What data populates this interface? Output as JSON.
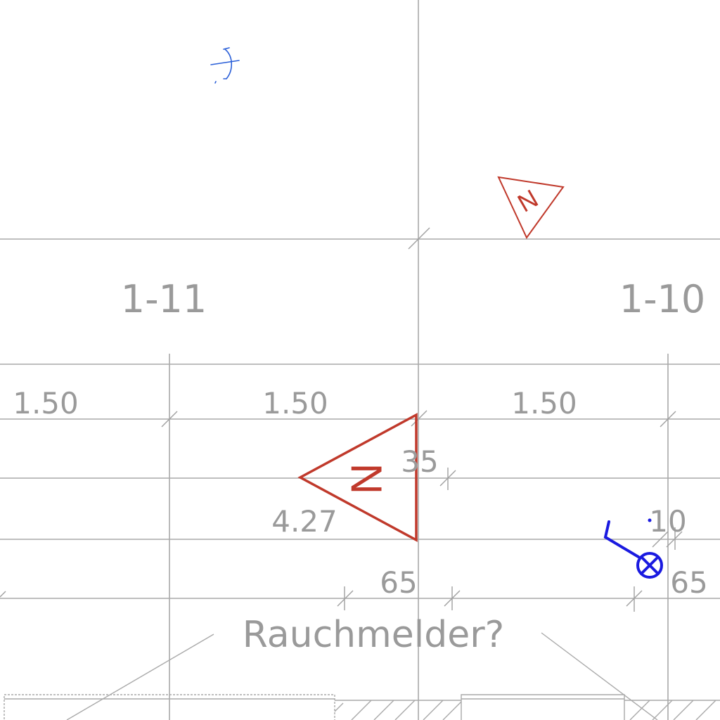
{
  "rooms": [
    {
      "id": "room-1-11",
      "label": "1-11"
    },
    {
      "id": "room-1-10",
      "label": "1-10"
    }
  ],
  "dimensions": {
    "row_1": [
      "1.50",
      "1.50",
      "1.50"
    ],
    "d_35": "35",
    "d_427": "4.27",
    "d_10": "10",
    "d_65_a": "65",
    "d_65_b": "65"
  },
  "annotation": "Rauchmelder?",
  "symbols": {
    "small_triangle_letter": "N",
    "large_triangle_letter": "N"
  },
  "colors": {
    "grid": "#a9a9a9",
    "text": "#9a9a9a",
    "red_symbol": "#c0392b",
    "blue_symbol": "#1a1ae0",
    "blue_sketch": "#2a5fd8"
  }
}
